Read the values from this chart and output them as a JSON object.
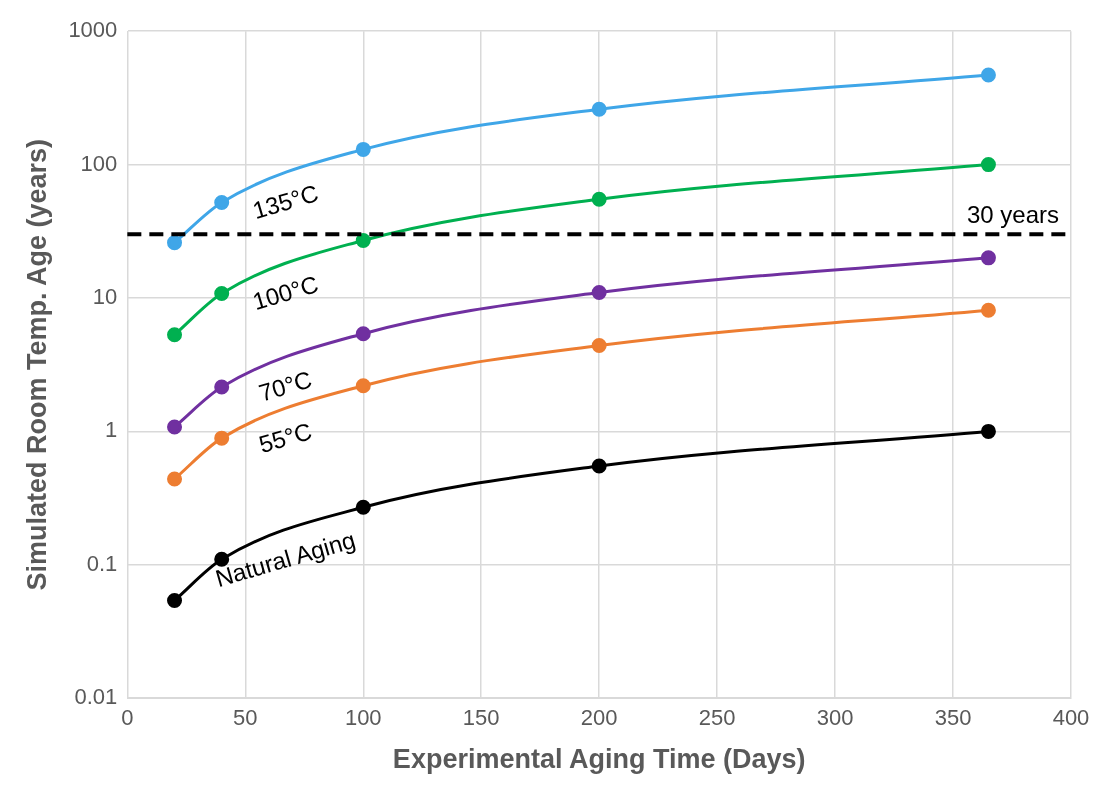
{
  "chart_data": {
    "type": "line",
    "xlabel": "Experimental Aging Time (Days)",
    "ylabel": "Simulated Room Temp. Age (years)",
    "log": "y",
    "grid": true,
    "legend": false,
    "marker": "circle",
    "line_style": "solid",
    "xlim": [
      0,
      400
    ],
    "xticks": [
      0,
      50,
      100,
      150,
      200,
      250,
      300,
      350,
      400
    ],
    "ylim": [
      0.01,
      1000
    ],
    "yticks": [
      0.01,
      0.1,
      1,
      10,
      100,
      1000
    ],
    "x": [
      20,
      40,
      100,
      200,
      365
    ],
    "series": [
      {
        "name": "135°C",
        "color": "#3fa6e8",
        "values": [
          26,
          52,
          130,
          260,
          470
        ]
      },
      {
        "name": "100°C",
        "color": "#00b050",
        "values": [
          5.3,
          10.8,
          27,
          55,
          100
        ]
      },
      {
        "name": "70°C",
        "color": "#7030a0",
        "values": [
          1.08,
          2.15,
          5.4,
          11,
          20
        ]
      },
      {
        "name": "55°C",
        "color": "#ed7d31",
        "values": [
          0.44,
          0.89,
          2.2,
          4.4,
          8.1
        ]
      },
      {
        "name": "Natural Aging",
        "color": "#000000",
        "values": [
          0.054,
          0.11,
          0.27,
          0.55,
          1
        ]
      }
    ],
    "ref_lines": [
      {
        "axis": "y",
        "value": 30,
        "label": "30 years",
        "color": "#000000",
        "line_style": "dashed"
      }
    ]
  }
}
